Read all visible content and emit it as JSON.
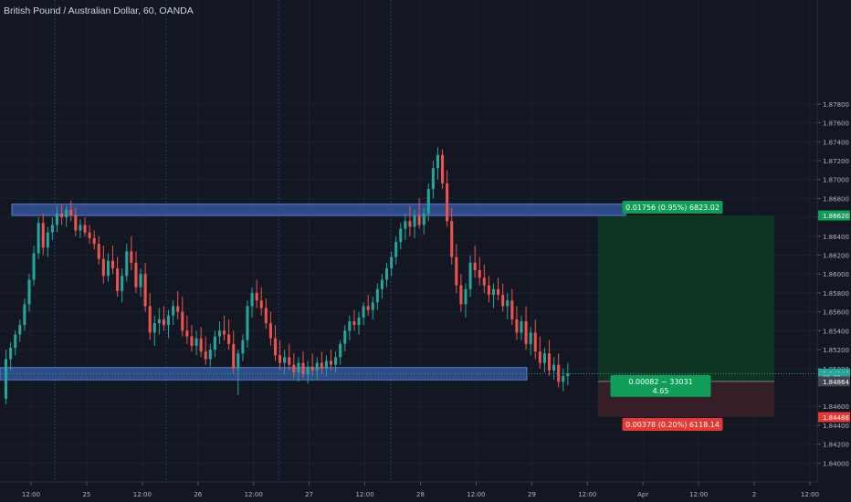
{
  "header": {
    "title": "British Pound / Australian Dollar, 60, OANDA"
  },
  "chart_data": {
    "type": "candlestick",
    "symbol": "GBPAUD",
    "ylim": [
      1.838,
      1.889
    ],
    "y_ticks": [
      "1.87800",
      "1.87600",
      "1.87400",
      "1.87200",
      "1.87000",
      "1.86800",
      "1.86600",
      "1.86400",
      "1.86200",
      "1.86000",
      "1.85800",
      "1.85600",
      "1.85400",
      "1.85200",
      "1.85000",
      "1.84600",
      "1.84400",
      "1.84200",
      "1.84000"
    ],
    "x_ticks": [
      "12:00",
      "25",
      "12:00",
      "26",
      "12:00",
      "27",
      "12:00",
      "28",
      "12:00",
      "29",
      "12:00",
      "Apr",
      "12:00",
      "2",
      "12:00"
    ],
    "session_lines": [
      0,
      1,
      2,
      3
    ],
    "bars_total": 176,
    "zones": [
      {
        "name": "resistance-zone",
        "top": 1.8674,
        "bottom": 1.8662,
        "start_bar": 0,
        "end_bar": 176,
        "color": "#3457a0"
      },
      {
        "name": "support-zone",
        "top": 1.8501,
        "bottom": 1.8488,
        "start_bar": 0,
        "end_bar": 60,
        "color": "#3457a0"
      }
    ],
    "position": {
      "entry": 1.84864,
      "target": 1.8662,
      "stop": 1.84486,
      "start_bar": 128,
      "end_bar": 166,
      "profit_label": "0.01756 (0.95%) 6823.02",
      "center_label_1": "0.00082 ~ 33031",
      "center_label_2": "4.65",
      "loss_label": "0.00378 (0.20%) 6118.14"
    },
    "price_badges": [
      {
        "value": "1.86620",
        "price": 1.8662,
        "bg": "#0f9d58",
        "fg": "#ffffff"
      },
      {
        "value": "1.84946",
        "price": 1.84946,
        "bg": "#26a69a",
        "fg": "#ffffff"
      },
      {
        "value": "01:05",
        "price": 1.84905,
        "bg": "#26a69a",
        "fg": "#ffffff"
      },
      {
        "value": "1.84864",
        "price": 1.84864,
        "bg": "#434651",
        "fg": "#ffffff"
      },
      {
        "value": "1.84486",
        "price": 1.84486,
        "bg": "#e53935",
        "fg": "#ffffff"
      }
    ],
    "last_price": 1.84946,
    "candles": [
      [
        1.8468,
        1.852,
        1.8462,
        1.851
      ],
      [
        1.851,
        1.8528,
        1.8498,
        1.8522
      ],
      [
        1.8522,
        1.854,
        1.8514,
        1.8536
      ],
      [
        1.8536,
        1.8552,
        1.8528,
        1.8546
      ],
      [
        1.8546,
        1.8574,
        1.854,
        1.8568
      ],
      [
        1.8568,
        1.86,
        1.856,
        1.8594
      ],
      [
        1.8594,
        1.863,
        1.8588,
        1.8622
      ],
      [
        1.8622,
        1.866,
        1.8616,
        1.8654
      ],
      [
        1.8654,
        1.8664,
        1.862,
        1.8628
      ],
      [
        1.8628,
        1.865,
        1.8618,
        1.8644
      ],
      [
        1.8644,
        1.866,
        1.8636,
        1.8652
      ],
      [
        1.8652,
        1.8672,
        1.8644,
        1.8664
      ],
      [
        1.8664,
        1.8674,
        1.8652,
        1.866
      ],
      [
        1.866,
        1.8672,
        1.865,
        1.8668
      ],
      [
        1.8668,
        1.8678,
        1.8656,
        1.8662
      ],
      [
        1.8662,
        1.867,
        1.864,
        1.8646
      ],
      [
        1.8646,
        1.8658,
        1.8638,
        1.8652
      ],
      [
        1.8652,
        1.866,
        1.864,
        1.8644
      ],
      [
        1.8644,
        1.8652,
        1.8632,
        1.8638
      ],
      [
        1.8638,
        1.8646,
        1.8626,
        1.8632
      ],
      [
        1.8632,
        1.864,
        1.861,
        1.8616
      ],
      [
        1.8616,
        1.863,
        1.859,
        1.8598
      ],
      [
        1.8598,
        1.8622,
        1.8592,
        1.8614
      ],
      [
        1.8614,
        1.863,
        1.86,
        1.8606
      ],
      [
        1.8606,
        1.8618,
        1.8576,
        1.8582
      ],
      [
        1.8582,
        1.8606,
        1.857,
        1.8598
      ],
      [
        1.8598,
        1.8632,
        1.8592,
        1.8624
      ],
      [
        1.8624,
        1.864,
        1.8604,
        1.8612
      ],
      [
        1.8612,
        1.8624,
        1.858,
        1.8586
      ],
      [
        1.8586,
        1.8606,
        1.8576,
        1.86
      ],
      [
        1.86,
        1.8612,
        1.856,
        1.8566
      ],
      [
        1.8566,
        1.858,
        1.853,
        1.8538
      ],
      [
        1.8538,
        1.8556,
        1.8524,
        1.8548
      ],
      [
        1.8548,
        1.8564,
        1.8536,
        1.8552
      ],
      [
        1.8552,
        1.8566,
        1.854,
        1.8546
      ],
      [
        1.8546,
        1.8562,
        1.8532,
        1.8556
      ],
      [
        1.8556,
        1.8572,
        1.8546,
        1.8566
      ],
      [
        1.8566,
        1.8582,
        1.8552,
        1.856
      ],
      [
        1.856,
        1.8576,
        1.8534,
        1.854
      ],
      [
        1.854,
        1.8556,
        1.8526,
        1.8534
      ],
      [
        1.8534,
        1.8546,
        1.8518,
        1.8524
      ],
      [
        1.8524,
        1.854,
        1.8514,
        1.8532
      ],
      [
        1.8532,
        1.8544,
        1.8512,
        1.8518
      ],
      [
        1.8518,
        1.8534,
        1.8504,
        1.851
      ],
      [
        1.851,
        1.8526,
        1.8502,
        1.852
      ],
      [
        1.852,
        1.854,
        1.8512,
        1.8534
      ],
      [
        1.8534,
        1.855,
        1.8526,
        1.854
      ],
      [
        1.854,
        1.8556,
        1.853,
        1.8536
      ],
      [
        1.8536,
        1.8552,
        1.852,
        1.8526
      ],
      [
        1.8526,
        1.854,
        1.8494,
        1.85
      ],
      [
        1.85,
        1.852,
        1.8472,
        1.8516
      ],
      [
        1.8516,
        1.8536,
        1.8508,
        1.853
      ],
      [
        1.853,
        1.8572,
        1.8522,
        1.8566
      ],
      [
        1.8566,
        1.8586,
        1.8554,
        1.858
      ],
      [
        1.858,
        1.8594,
        1.8564,
        1.8572
      ],
      [
        1.8572,
        1.8586,
        1.8556,
        1.8564
      ],
      [
        1.8564,
        1.8574,
        1.8542,
        1.8548
      ],
      [
        1.8548,
        1.856,
        1.8524,
        1.8532
      ],
      [
        1.8532,
        1.8546,
        1.8508,
        1.8514
      ],
      [
        1.8514,
        1.853,
        1.8498,
        1.8506
      ],
      [
        1.8506,
        1.852,
        1.8494,
        1.8512
      ],
      [
        1.8512,
        1.8526,
        1.8498,
        1.8504
      ],
      [
        1.8504,
        1.8516,
        1.849,
        1.8496
      ],
      [
        1.8496,
        1.8512,
        1.8486,
        1.8506
      ],
      [
        1.8506,
        1.8518,
        1.849,
        1.8494
      ],
      [
        1.8494,
        1.8508,
        1.8484,
        1.8502
      ],
      [
        1.8502,
        1.8516,
        1.8492,
        1.8498
      ],
      [
        1.8498,
        1.8512,
        1.8488,
        1.8506
      ],
      [
        1.8506,
        1.8518,
        1.8494,
        1.85
      ],
      [
        1.85,
        1.8514,
        1.8492,
        1.8508
      ],
      [
        1.8508,
        1.852,
        1.8498,
        1.8504
      ],
      [
        1.8504,
        1.8518,
        1.8496,
        1.8512
      ],
      [
        1.8512,
        1.853,
        1.8504,
        1.8526
      ],
      [
        1.8526,
        1.8546,
        1.8518,
        1.854
      ],
      [
        1.854,
        1.8556,
        1.853,
        1.855
      ],
      [
        1.855,
        1.8562,
        1.854,
        1.8546
      ],
      [
        1.8546,
        1.856,
        1.8536,
        1.8554
      ],
      [
        1.8554,
        1.857,
        1.8546,
        1.8566
      ],
      [
        1.8566,
        1.8578,
        1.8556,
        1.8562
      ],
      [
        1.8562,
        1.8576,
        1.8552,
        1.857
      ],
      [
        1.857,
        1.859,
        1.8562,
        1.8584
      ],
      [
        1.8584,
        1.86,
        1.8574,
        1.8594
      ],
      [
        1.8594,
        1.8612,
        1.8586,
        1.8606
      ],
      [
        1.8606,
        1.8624,
        1.8598,
        1.8618
      ],
      [
        1.8618,
        1.864,
        1.861,
        1.8634
      ],
      [
        1.8634,
        1.8654,
        1.8626,
        1.8648
      ],
      [
        1.8648,
        1.8664,
        1.8636,
        1.8656
      ],
      [
        1.8656,
        1.8672,
        1.864,
        1.865
      ],
      [
        1.865,
        1.8668,
        1.8638,
        1.8662
      ],
      [
        1.8662,
        1.868,
        1.8648,
        1.8652
      ],
      [
        1.8652,
        1.867,
        1.8642,
        1.8664
      ],
      [
        1.8664,
        1.8696,
        1.8656,
        1.869
      ],
      [
        1.869,
        1.872,
        1.868,
        1.8712
      ],
      [
        1.8712,
        1.8734,
        1.87,
        1.8726
      ],
      [
        1.8726,
        1.8732,
        1.869,
        1.8696
      ],
      [
        1.8696,
        1.871,
        1.865,
        1.8656
      ],
      [
        1.8656,
        1.867,
        1.861,
        1.8618
      ],
      [
        1.8618,
        1.8632,
        1.858,
        1.8588
      ],
      [
        1.8588,
        1.86,
        1.856,
        1.8568
      ],
      [
        1.8568,
        1.859,
        1.8554,
        1.8584
      ],
      [
        1.8584,
        1.862,
        1.8576,
        1.8612
      ],
      [
        1.8612,
        1.863,
        1.8596,
        1.8604
      ],
      [
        1.8604,
        1.8618,
        1.8588,
        1.8596
      ],
      [
        1.8596,
        1.861,
        1.858,
        1.8588
      ],
      [
        1.8588,
        1.8598,
        1.857,
        1.8578
      ],
      [
        1.8578,
        1.859,
        1.8564,
        1.8584
      ],
      [
        1.8584,
        1.8596,
        1.8572,
        1.8578
      ],
      [
        1.8578,
        1.859,
        1.856,
        1.8566
      ],
      [
        1.8566,
        1.858,
        1.8552,
        1.8572
      ],
      [
        1.8572,
        1.8584,
        1.8546,
        1.8552
      ],
      [
        1.8552,
        1.8566,
        1.853,
        1.8538
      ],
      [
        1.8538,
        1.8556,
        1.853,
        1.855
      ],
      [
        1.855,
        1.8566,
        1.852,
        1.8526
      ],
      [
        1.8526,
        1.8544,
        1.8514,
        1.8538
      ],
      [
        1.8538,
        1.8552,
        1.851,
        1.8518
      ],
      [
        1.8518,
        1.8534,
        1.85,
        1.8506
      ],
      [
        1.8506,
        1.8522,
        1.8496,
        1.8516
      ],
      [
        1.8516,
        1.853,
        1.8492,
        1.8498
      ],
      [
        1.8498,
        1.8512,
        1.8488,
        1.8504
      ],
      [
        1.8504,
        1.8516,
        1.848,
        1.8486
      ],
      [
        1.8486,
        1.85,
        1.8476,
        1.8492
      ],
      [
        1.8492,
        1.8506,
        1.8482,
        1.8495
      ]
    ]
  }
}
